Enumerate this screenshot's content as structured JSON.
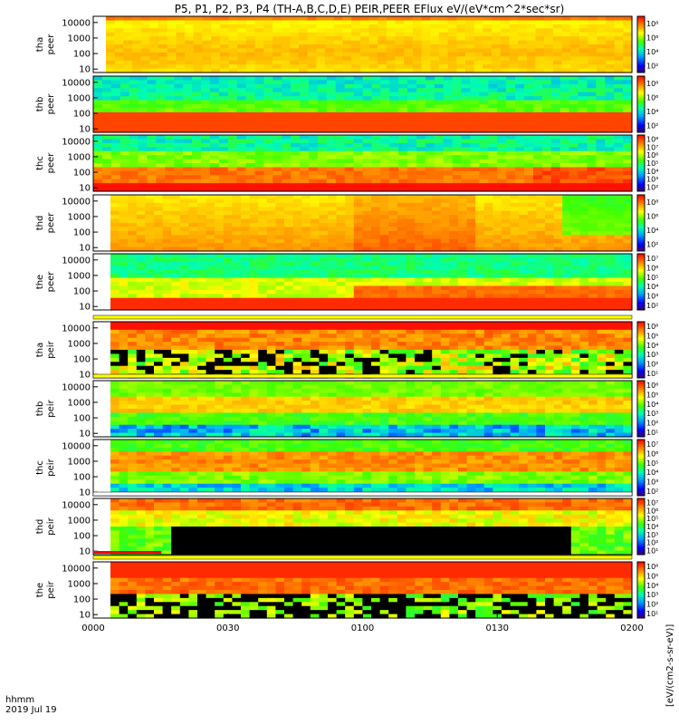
{
  "chart_data": {
    "type": "heatmap",
    "title": "P5, P1, P2, P3, P4 (TH-A,B,C,D,E) PEIR,PEER EFlux eV/(eV*cm^2*sec*sr)",
    "x_tick_labels": [
      "0000",
      "0030",
      "0100",
      "0130",
      "0200"
    ],
    "x_range_minutes": [
      0,
      120
    ],
    "time_label": "hhmm",
    "date_label": "2019 Jul 19",
    "y_scale": "log",
    "y_tick_labels": [
      "10",
      "100",
      "1000",
      "10000"
    ],
    "y_range_ev": [
      6,
      25000
    ],
    "colorbar_label": "[eV/(cm2-s-sr-eV)]",
    "colorbar_scale": "log",
    "panels": [
      {
        "probe": "tha",
        "species": "peer",
        "cbar_ticks": [
          "10²",
          "10⁴",
          "10⁶",
          "10⁸"
        ]
      },
      {
        "probe": "thb",
        "species": "peer",
        "cbar_ticks": [
          "10²",
          "10⁴",
          "10⁶",
          "10⁸"
        ]
      },
      {
        "probe": "thc",
        "species": "peer",
        "cbar_ticks": [
          "10²",
          "10³",
          "10⁴",
          "10⁵",
          "10⁶",
          "10⁷",
          "10⁸"
        ]
      },
      {
        "probe": "thd",
        "species": "peer",
        "cbar_ticks": [
          "10²",
          "10⁴",
          "10⁶",
          "10⁸"
        ]
      },
      {
        "probe": "the",
        "species": "peer",
        "cbar_ticks": [
          "10²",
          "10³",
          "10⁴",
          "10⁵",
          "10⁶",
          "10⁷"
        ]
      },
      {
        "probe": "tha",
        "species": "peir",
        "cbar_ticks": [
          "10¹",
          "10²",
          "10³",
          "10⁴",
          "10⁵",
          "10⁶"
        ]
      },
      {
        "probe": "thb",
        "species": "peir",
        "cbar_ticks": [
          "10¹",
          "10²",
          "10³",
          "10⁴",
          "10⁵",
          "10⁶"
        ]
      },
      {
        "probe": "thc",
        "species": "peir",
        "cbar_ticks": [
          "10²",
          "10³",
          "10⁴",
          "10⁵",
          "10⁶",
          "10⁷"
        ]
      },
      {
        "probe": "thd",
        "species": "peir",
        "cbar_ticks": [
          "10¹",
          "10²",
          "10³",
          "10⁴",
          "10⁵",
          "10⁶",
          "10⁷"
        ]
      },
      {
        "probe": "the",
        "species": "peir",
        "cbar_ticks": [
          "10¹",
          "10²",
          "10³",
          "10⁴",
          "10⁵",
          "10⁶"
        ]
      }
    ]
  }
}
